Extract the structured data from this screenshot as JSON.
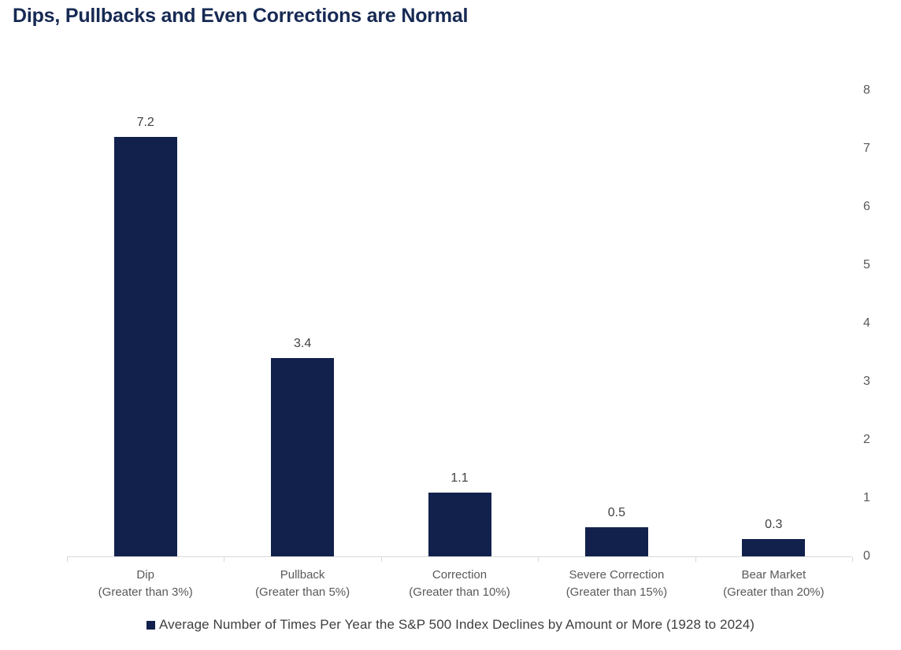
{
  "title": "Dips, Pullbacks and Even Corrections are Normal",
  "colors": {
    "bar": "#12214c",
    "title_text": "#172a54",
    "axis_line": "#d9d9d9",
    "axis_tick_label": "#595959",
    "value_label": "#404040",
    "legend_text": "#3f3f3f"
  },
  "chart_data": {
    "type": "bar",
    "title": "Dips, Pullbacks and Even Corrections are Normal",
    "categories": [
      {
        "label": "Dip",
        "sublabel": "(Greater than 3%)"
      },
      {
        "label": "Pullback",
        "sublabel": "(Greater than 5%)"
      },
      {
        "label": "Correction",
        "sublabel": "(Greater than 10%)"
      },
      {
        "label": "Severe Correction",
        "sublabel": "(Greater than 15%)"
      },
      {
        "label": "Bear Market",
        "sublabel": "(Greater than 20%)"
      }
    ],
    "values": [
      7.2,
      3.4,
      1.1,
      0.5,
      0.3
    ],
    "value_labels": [
      "7.2",
      "3.4",
      "1.1",
      "0.5",
      "0.3"
    ],
    "xlabel": "",
    "ylabel": "",
    "ylim": [
      0,
      8
    ],
    "yticks": [
      0,
      1,
      2,
      3,
      4,
      5,
      6,
      7,
      8
    ],
    "y_axis_side": "right",
    "grid": false,
    "legend_position": "bottom",
    "legend": "Average Number of Times Per Year the S&P 500 Index Declines by Amount or More (1928 to 2024)"
  }
}
